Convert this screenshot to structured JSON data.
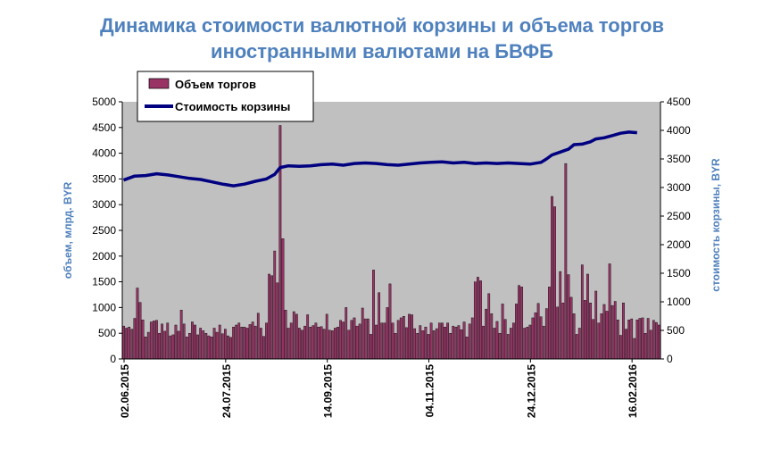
{
  "title_lines": [
    "Динамика стоимости валютной корзины и объема торгов",
    "иностранными валютами на БВФБ"
  ],
  "colors": {
    "title": "#4f81bd",
    "plot_bg": "#c0c0c0",
    "bars": "#993366",
    "line": "#000080",
    "axis_titles": "#4f81bd"
  },
  "chart_data": {
    "type": "bar+line",
    "title": "Динамика стоимости валютной корзины и объема торгов иностранными валютами на БВФБ",
    "ylabel": "объем, млрд. BYR",
    "y2label": "стоимость корзины, BYR",
    "ylim": [
      0,
      5000
    ],
    "y2lim": [
      0,
      4500
    ],
    "y_ticks": [
      "0",
      "500",
      "1000",
      "1500",
      "2000",
      "2500",
      "3000",
      "3500",
      "4000",
      "4500",
      "5000"
    ],
    "y2_ticks": [
      "0",
      "500",
      "1000",
      "1500",
      "2000",
      "2500",
      "3000",
      "3500",
      "4000",
      "4500"
    ],
    "x_tick_labels": [
      "02.06.2015",
      "24.07.2015",
      "14.09.2015",
      "04.11.2015",
      "24.12.2015",
      "16.02.2016"
    ],
    "x_tick_positions": [
      0,
      37,
      74,
      111,
      148,
      185
    ],
    "grid": false,
    "legend_position": "top-left",
    "series": [
      {
        "name": "Объем торгов",
        "type": "bar",
        "values": [
          640,
          600,
          620,
          580,
          790,
          1380,
          1100,
          760,
          430,
          520,
          720,
          740,
          750,
          500,
          680,
          540,
          700,
          450,
          470,
          660,
          540,
          950,
          680,
          430,
          500,
          720,
          660,
          470,
          600,
          550,
          500,
          450,
          430,
          600,
          520,
          660,
          490,
          580,
          450,
          420,
          620,
          660,
          700,
          620,
          620,
          600,
          670,
          720,
          640,
          890,
          600,
          440,
          700,
          1650,
          1620,
          2100,
          1480,
          4540,
          2340,
          950,
          600,
          700,
          920,
          870,
          600,
          560,
          640,
          860,
          620,
          650,
          700,
          620,
          630,
          580,
          870,
          560,
          550,
          600,
          620,
          750,
          720,
          1000,
          560,
          750,
          800,
          640,
          680,
          990,
          780,
          780,
          480,
          1730,
          660,
          1290,
          700,
          700,
          1000,
          1460,
          700,
          500,
          750,
          800,
          830,
          610,
          870,
          860,
          590,
          500,
          650,
          550,
          620,
          480,
          700,
          550,
          590,
          700,
          700,
          620,
          700,
          500,
          640,
          620,
          650,
          570,
          720,
          430,
          680,
          800,
          1500,
          1590,
          1520,
          640,
          970,
          1270,
          880,
          600,
          730,
          500,
          1070,
          770,
          480,
          600,
          700,
          1070,
          1430,
          1400,
          600,
          620,
          660,
          800,
          900,
          1080,
          820,
          640,
          980,
          1400,
          3160,
          2960,
          1010,
          1700,
          1090,
          3800,
          1640,
          1200,
          880,
          480,
          600,
          1830,
          1140,
          1650,
          1090,
          770,
          1320,
          700,
          880,
          1060,
          930,
          1850,
          1040,
          1120,
          760,
          460,
          1090,
          580,
          760,
          780,
          400,
          760,
          790,
          800,
          500,
          790,
          560,
          750,
          710,
          660
        ]
      },
      {
        "name": "Стоимость корзины",
        "type": "line",
        "x": [
          0,
          4,
          8,
          12,
          16,
          20,
          24,
          28,
          32,
          36,
          40,
          44,
          48,
          52,
          55,
          57,
          60,
          64,
          68,
          72,
          76,
          80,
          84,
          88,
          92,
          96,
          100,
          104,
          108,
          112,
          116,
          120,
          124,
          128,
          132,
          136,
          140,
          144,
          148,
          152,
          154,
          156,
          159,
          162,
          164,
          167,
          170,
          172,
          175,
          178,
          181,
          184,
          187
        ],
        "values": [
          3130,
          3200,
          3210,
          3240,
          3220,
          3190,
          3160,
          3140,
          3100,
          3060,
          3030,
          3060,
          3110,
          3150,
          3230,
          3350,
          3380,
          3370,
          3380,
          3400,
          3410,
          3390,
          3420,
          3430,
          3420,
          3400,
          3390,
          3410,
          3430,
          3440,
          3450,
          3430,
          3440,
          3420,
          3430,
          3420,
          3430,
          3420,
          3410,
          3440,
          3500,
          3570,
          3620,
          3670,
          3750,
          3760,
          3800,
          3850,
          3870,
          3910,
          3950,
          3970,
          3960
        ]
      }
    ]
  }
}
